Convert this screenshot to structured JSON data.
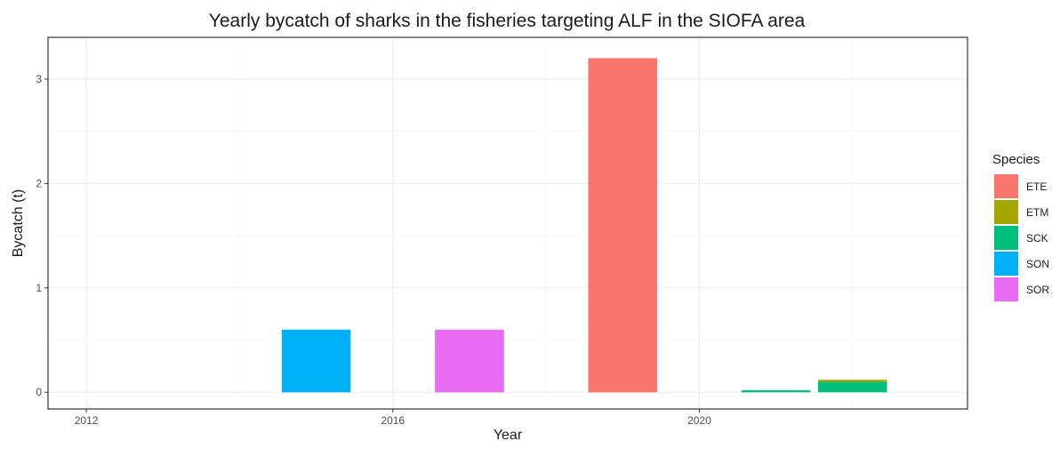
{
  "chart_data": {
    "type": "bar",
    "title": "Yearly bycatch of sharks in the fisheries targeting ALF in the SIOFA area",
    "xlabel": "Year",
    "ylabel": "Bycatch (t)",
    "xlim": [
      2011.5,
      2023.5
    ],
    "ylim": [
      -0.16,
      3.4
    ],
    "x_ticks": [
      2012,
      2016,
      2020
    ],
    "y_ticks": [
      0,
      1,
      2,
      3
    ],
    "grid": true,
    "legend": {
      "title": "Species",
      "position": "right",
      "entries": [
        {
          "label": "ETE",
          "color": "#F8766D"
        },
        {
          "label": "ETM",
          "color": "#A3A500"
        },
        {
          "label": "SCK",
          "color": "#00BF7D"
        },
        {
          "label": "SON",
          "color": "#00B0F6"
        },
        {
          "label": "SOR",
          "color": "#E76BF3"
        }
      ]
    },
    "bar_width_years": 0.9,
    "bars": [
      {
        "year": 2015,
        "segments": [
          {
            "species": "SON",
            "value": 0.6
          }
        ]
      },
      {
        "year": 2017,
        "segments": [
          {
            "species": "SOR",
            "value": 0.6
          }
        ]
      },
      {
        "year": 2019,
        "segments": [
          {
            "species": "ETE",
            "value": 3.2
          }
        ]
      },
      {
        "year": 2021,
        "segments": [
          {
            "species": "SCK",
            "value": 0.02
          }
        ]
      },
      {
        "year": 2022,
        "segments": [
          {
            "species": "SCK",
            "value": 0.1
          },
          {
            "species": "ETM",
            "value": 0.02
          }
        ]
      }
    ]
  }
}
